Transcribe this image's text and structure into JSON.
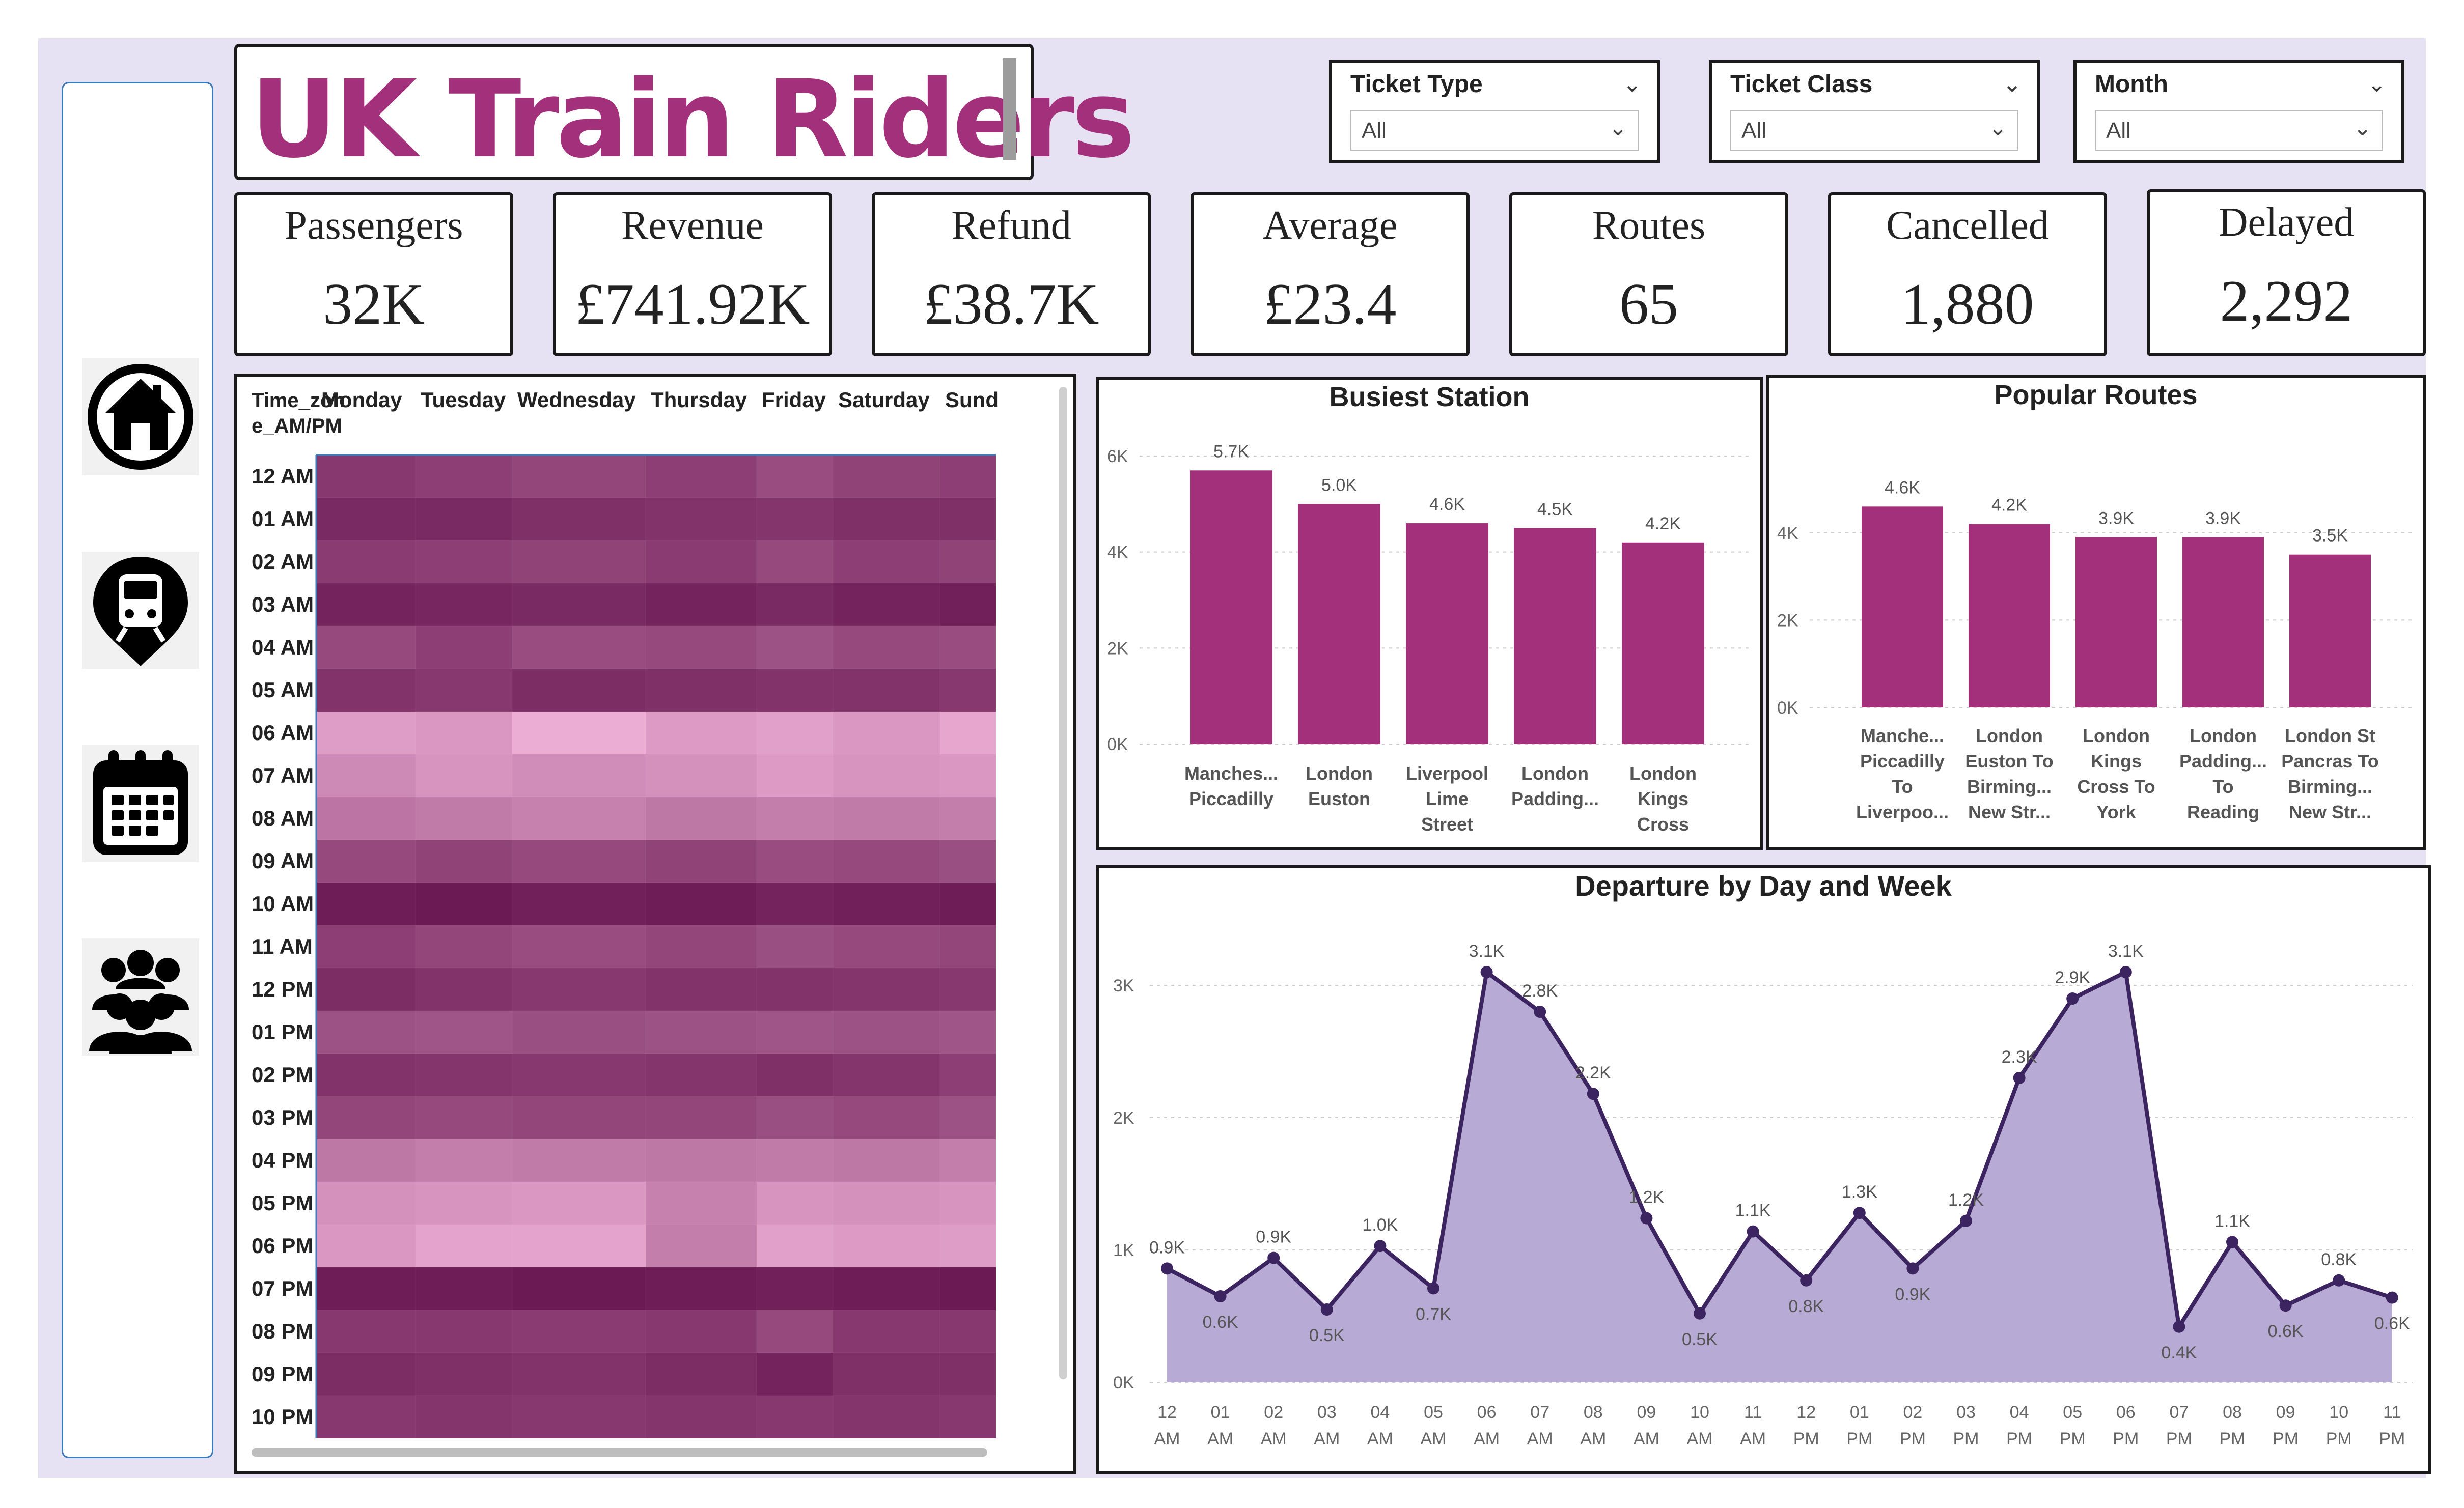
{
  "title": "UK Train Riders",
  "slicers": [
    {
      "label": "Ticket Type",
      "value": "All"
    },
    {
      "label": "Ticket Class",
      "value": "All"
    },
    {
      "label": "Month",
      "value": "All"
    }
  ],
  "kpis": [
    {
      "label": "Passengers",
      "value": "32K"
    },
    {
      "label": "Revenue",
      "value": "£741.92K"
    },
    {
      "label": "Refund",
      "value": "£38.7K"
    },
    {
      "label": "Average",
      "value": "£23.4"
    },
    {
      "label": "Routes",
      "value": "65"
    },
    {
      "label": "Cancelled",
      "value": "1,880"
    },
    {
      "label": "Delayed",
      "value": "2,292"
    }
  ],
  "nav_icons": [
    "home-icon",
    "station-pin-icon",
    "calendar-icon",
    "people-icon"
  ],
  "chart_data": [
    {
      "type": "heatmap",
      "row_header": "Time_zone_AM/PM",
      "columns": [
        "Monday",
        "Tuesday",
        "Wednesday",
        "Thursday",
        "Friday",
        "Saturday",
        "Sund"
      ],
      "rows": [
        "12 AM",
        "01 AM",
        "02 AM",
        "03 AM",
        "04 AM",
        "05 AM",
        "06 AM",
        "07 AM",
        "08 AM",
        "09 AM",
        "10 AM",
        "11 AM",
        "12 PM",
        "01 PM",
        "02 PM",
        "03 PM",
        "04 PM",
        "05 PM",
        "06 PM",
        "07 PM",
        "08 PM",
        "09 PM",
        "10 PM"
      ],
      "intensity": [
        [
          0.8,
          0.76,
          0.72,
          0.76,
          0.68,
          0.74,
          0.76
        ],
        [
          0.9,
          0.9,
          0.86,
          0.84,
          0.82,
          0.86,
          0.86
        ],
        [
          0.78,
          0.76,
          0.74,
          0.78,
          0.7,
          0.76,
          0.74
        ],
        [
          0.94,
          0.92,
          0.9,
          0.94,
          0.9,
          0.94,
          0.96
        ],
        [
          0.7,
          0.76,
          0.68,
          0.7,
          0.64,
          0.7,
          0.68
        ],
        [
          0.84,
          0.8,
          0.88,
          0.86,
          0.84,
          0.84,
          0.8
        ],
        [
          0.16,
          0.2,
          0.06,
          0.18,
          0.14,
          0.2,
          0.1
        ],
        [
          0.28,
          0.22,
          0.26,
          0.24,
          0.18,
          0.22,
          0.2
        ],
        [
          0.42,
          0.38,
          0.34,
          0.4,
          0.36,
          0.38,
          0.36
        ],
        [
          0.7,
          0.74,
          0.7,
          0.74,
          0.68,
          0.7,
          0.66
        ],
        [
          0.98,
          1.0,
          0.96,
          0.98,
          0.94,
          0.96,
          0.98
        ],
        [
          0.76,
          0.72,
          0.68,
          0.72,
          0.66,
          0.7,
          0.72
        ],
        [
          0.88,
          0.84,
          0.8,
          0.84,
          0.84,
          0.82,
          0.8
        ],
        [
          0.64,
          0.62,
          0.66,
          0.64,
          0.62,
          0.64,
          0.62
        ],
        [
          0.84,
          0.82,
          0.8,
          0.82,
          0.86,
          0.82,
          0.76
        ],
        [
          0.72,
          0.7,
          0.72,
          0.72,
          0.66,
          0.7,
          0.64
        ],
        [
          0.4,
          0.36,
          0.38,
          0.4,
          0.38,
          0.4,
          0.36
        ],
        [
          0.24,
          0.22,
          0.2,
          0.34,
          0.22,
          0.24,
          0.22
        ],
        [
          0.2,
          0.12,
          0.12,
          0.36,
          0.14,
          0.18,
          0.16
        ],
        [
          0.98,
          0.98,
          1.0,
          0.98,
          0.96,
          0.98,
          1.0
        ],
        [
          0.8,
          0.8,
          0.78,
          0.8,
          0.7,
          0.8,
          0.8
        ],
        [
          0.88,
          0.86,
          0.84,
          0.88,
          0.94,
          0.86,
          0.86
        ],
        [
          0.8,
          0.82,
          0.8,
          0.82,
          0.8,
          0.82,
          0.8
        ]
      ]
    },
    {
      "type": "bar",
      "title": "Busiest Station",
      "categories": [
        "Manches... Piccadilly",
        "London Euston",
        "Liverpool Lime Street",
        "London Padding...",
        "London Kings Cross"
      ],
      "category_lines": [
        [
          "Manches...",
          "Piccadilly"
        ],
        [
          "London",
          "Euston"
        ],
        [
          "Liverpool",
          "Lime",
          "Street"
        ],
        [
          "London",
          "Padding..."
        ],
        [
          "London",
          "Kings",
          "Cross"
        ]
      ],
      "values": [
        5.7,
        5.0,
        4.6,
        4.5,
        4.2
      ],
      "value_labels": [
        "5.7K",
        "5.0K",
        "4.6K",
        "4.5K",
        "4.2K"
      ],
      "yticks": [
        "0K",
        "2K",
        "4K",
        "6K"
      ],
      "ylim": [
        0,
        6
      ]
    },
    {
      "type": "bar",
      "title": "Popular Routes",
      "categories": [
        "Manche... Piccadilly To Liverpoo...",
        "London Euston To Birming... New Str...",
        "London Kings Cross To York",
        "London Padding... To Reading",
        "London St Pancras To Birming... New Str..."
      ],
      "category_lines": [
        [
          "Manche...",
          "Piccadilly",
          "To",
          "Liverpoo..."
        ],
        [
          "London",
          "Euston To",
          "Birming...",
          "New Str..."
        ],
        [
          "London",
          "Kings",
          "Cross To",
          "York"
        ],
        [
          "London",
          "Padding...",
          "To",
          "Reading"
        ],
        [
          "London St",
          "Pancras To",
          "Birming...",
          "New Str..."
        ]
      ],
      "values": [
        4.6,
        4.2,
        3.9,
        3.9,
        3.5
      ],
      "value_labels": [
        "4.6K",
        "4.2K",
        "3.9K",
        "3.9K",
        "3.5K"
      ],
      "yticks": [
        "0K",
        "2K",
        "4K"
      ],
      "ylim": [
        0,
        5
      ]
    },
    {
      "type": "area",
      "title": "Departure by Day and Week",
      "categories": [
        [
          "12",
          "AM"
        ],
        [
          "01",
          "AM"
        ],
        [
          "02",
          "AM"
        ],
        [
          "03",
          "AM"
        ],
        [
          "04",
          "AM"
        ],
        [
          "05",
          "AM"
        ],
        [
          "06",
          "AM"
        ],
        [
          "07",
          "AM"
        ],
        [
          "08",
          "AM"
        ],
        [
          "09",
          "AM"
        ],
        [
          "10",
          "AM"
        ],
        [
          "11",
          "AM"
        ],
        [
          "12",
          "PM"
        ],
        [
          "01",
          "PM"
        ],
        [
          "02",
          "PM"
        ],
        [
          "03",
          "PM"
        ],
        [
          "04",
          "PM"
        ],
        [
          "05",
          "PM"
        ],
        [
          "06",
          "PM"
        ],
        [
          "07",
          "PM"
        ],
        [
          "08",
          "PM"
        ],
        [
          "09",
          "PM"
        ],
        [
          "10",
          "PM"
        ],
        [
          "11",
          "PM"
        ]
      ],
      "values": [
        0.86,
        0.65,
        0.94,
        0.55,
        1.03,
        0.71,
        3.1,
        2.8,
        2.18,
        1.24,
        0.52,
        1.14,
        0.77,
        1.28,
        0.86,
        1.22,
        2.3,
        2.9,
        3.1,
        0.42,
        1.06,
        0.58,
        0.77,
        0.64
      ],
      "value_labels": [
        "0.9K",
        "0.6K",
        "0.9K",
        "0.5K",
        "1.0K",
        "0.7K",
        "3.1K",
        "2.8K",
        "2.2K",
        "1.2K",
        "0.5K",
        "1.1K",
        "0.8K",
        "1.3K",
        "0.9K",
        "1.2K",
        "2.3K",
        "2.9K",
        "3.1K",
        "0.4K",
        "1.1K",
        "0.6K",
        "0.8K",
        "0.6K"
      ],
      "label_positions": [
        "above",
        "below",
        "above",
        "below",
        "above",
        "below",
        "above",
        "above",
        "above",
        "above",
        "below",
        "above",
        "below",
        "above",
        "below",
        "above",
        "above",
        "above",
        "above",
        "below",
        "above",
        "below",
        "above",
        "below"
      ],
      "yticks": [
        "0K",
        "1K",
        "2K",
        "3K"
      ],
      "ylim": [
        0,
        3
      ]
    }
  ],
  "colors": {
    "bar": "#a3307a",
    "title": "#a3307a",
    "area_fill": "#b7aad4",
    "area_line": "#3b2460",
    "canvas": "#e6e2f3"
  }
}
